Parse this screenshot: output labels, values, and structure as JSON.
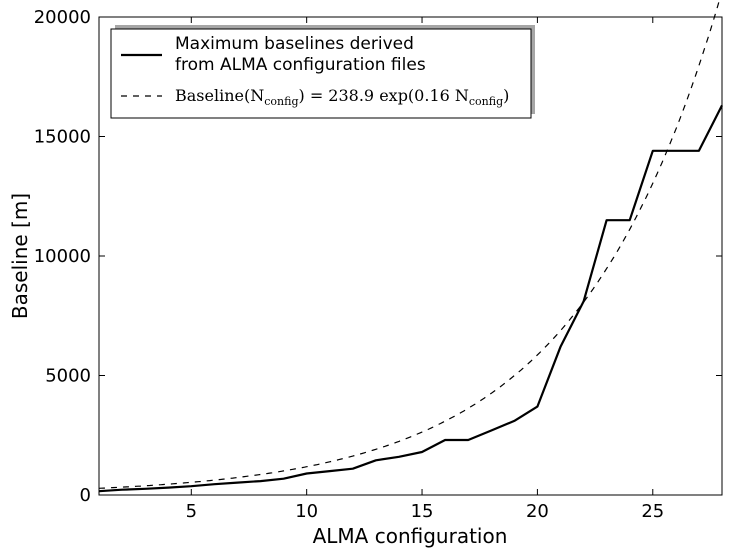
{
  "chart_data": {
    "type": "line",
    "xlabel": "ALMA configuration",
    "ylabel": "Baseline [m]",
    "xlim": [
      1,
      28
    ],
    "ylim": [
      0,
      20000
    ],
    "x_ticks": [
      5,
      10,
      15,
      20,
      25
    ],
    "y_ticks": [
      0,
      5000,
      10000,
      15000,
      20000
    ],
    "grid": false,
    "legend_position": "top-left",
    "series": [
      {
        "name": "Maximum baselines derived from ALMA configuration files",
        "legend_line1": "Maximum baselines derived",
        "legend_line2": "from ALMA configuration files",
        "style": "solid",
        "x": [
          1,
          2,
          3,
          4,
          5,
          6,
          7,
          8,
          9,
          10,
          11,
          12,
          13,
          14,
          15,
          16,
          17,
          18,
          19,
          20,
          21,
          22,
          23,
          24,
          25,
          26,
          27,
          28
        ],
        "values": [
          160,
          220,
          260,
          310,
          370,
          450,
          520,
          580,
          680,
          900,
          1000,
          1100,
          1450,
          1600,
          1800,
          2300,
          2300,
          2700,
          3100,
          3700,
          6200,
          8100,
          11500,
          11500,
          14400,
          14400,
          14400,
          16300
        ]
      },
      {
        "name": "Baseline(N_config) = 238.9 exp(0.16 N_config)",
        "style": "dashed",
        "model": {
          "a": 238.9,
          "b": 0.16
        },
        "legend_label_parts": [
          "Baseline(N",
          "config",
          ") = 238.9 exp(0.16 N",
          "config",
          ")"
        ]
      }
    ]
  }
}
